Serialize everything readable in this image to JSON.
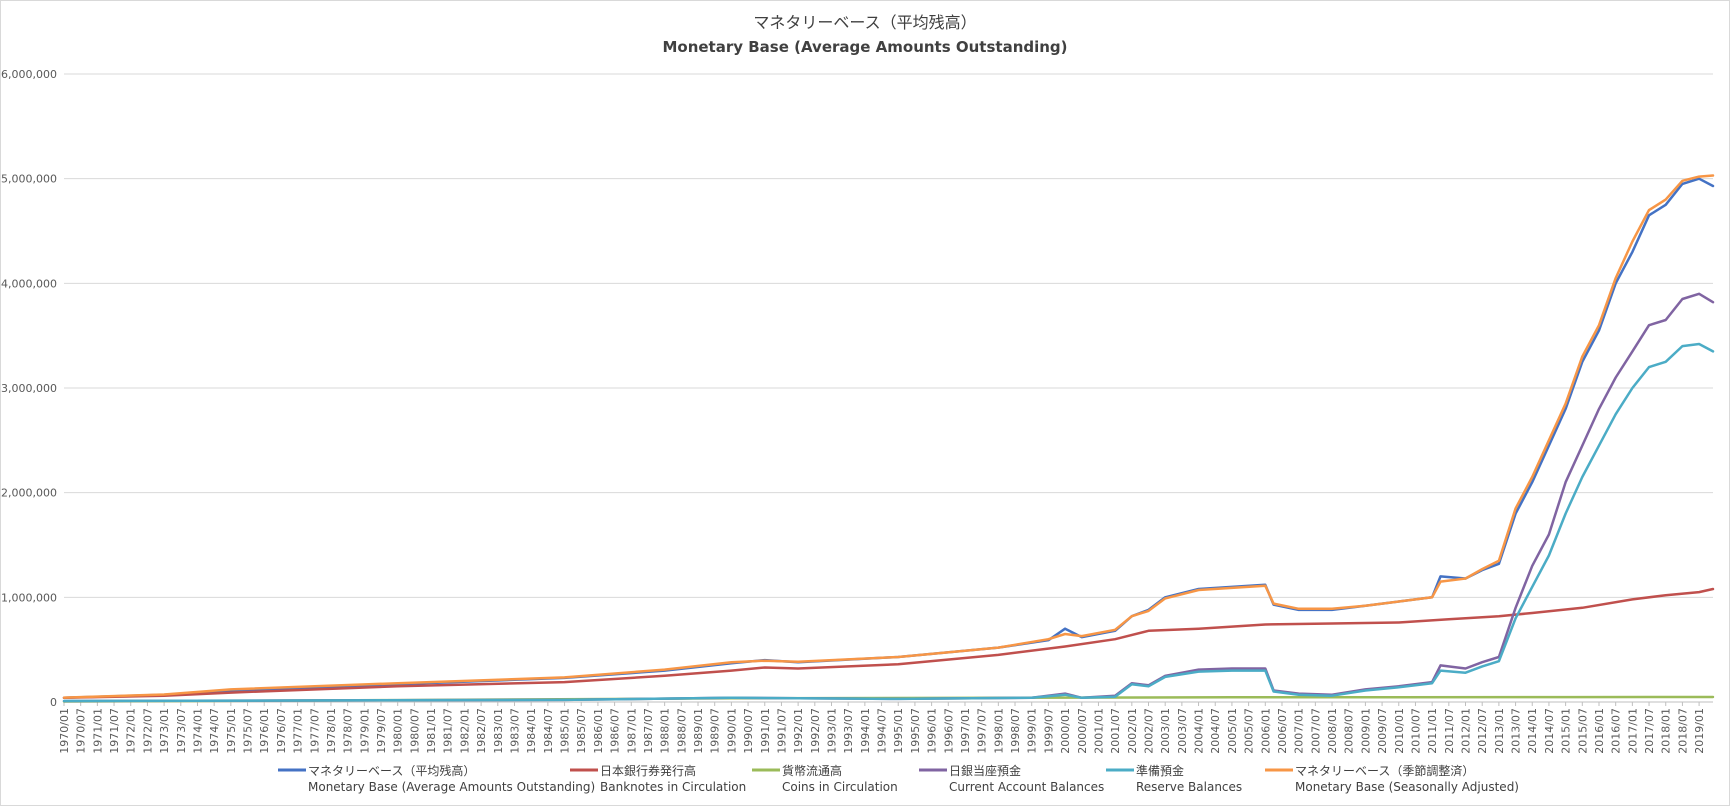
{
  "chart_data": {
    "type": "line",
    "title": "マネタリーベース（平均残高）",
    "subtitle": "Monetary Base (Average Amounts Outstanding)",
    "ylim": [
      0,
      6000000
    ],
    "yticks": [
      0,
      1000000,
      2000000,
      3000000,
      4000000,
      5000000,
      6000000
    ],
    "ytick_labels": [
      "0",
      "1,000,000",
      "2,000,000",
      "3,000,000",
      "4,000,000",
      "5,000,000",
      "6,000,000"
    ],
    "x_range": [
      "1970/01",
      "2019/06"
    ],
    "grid": true,
    "legend_position": "bottom",
    "series": [
      {
        "name": "マネタリーベース（平均残高）",
        "name_en": "Monetary Base (Average Amounts Outstanding)",
        "color": "#4472c4",
        "points": [
          [
            "1970/01",
            40000
          ],
          [
            "1973/01",
            70000
          ],
          [
            "1975/01",
            110000
          ],
          [
            "1980/01",
            170000
          ],
          [
            "1985/01",
            230000
          ],
          [
            "1988/01",
            300000
          ],
          [
            "1990/01",
            370000
          ],
          [
            "1991/01",
            400000
          ],
          [
            "1992/01",
            380000
          ],
          [
            "1995/01",
            430000
          ],
          [
            "1998/01",
            520000
          ],
          [
            "1999/07",
            590000
          ],
          [
            "2000/01",
            700000
          ],
          [
            "2000/07",
            620000
          ],
          [
            "2001/07",
            680000
          ],
          [
            "2002/01",
            820000
          ],
          [
            "2002/07",
            880000
          ],
          [
            "2003/01",
            1000000
          ],
          [
            "2004/01",
            1080000
          ],
          [
            "2005/01",
            1100000
          ],
          [
            "2006/01",
            1120000
          ],
          [
            "2006/04",
            930000
          ],
          [
            "2007/01",
            880000
          ],
          [
            "2008/01",
            880000
          ],
          [
            "2009/01",
            920000
          ],
          [
            "2010/01",
            960000
          ],
          [
            "2011/01",
            1000000
          ],
          [
            "2011/04",
            1200000
          ],
          [
            "2012/01",
            1180000
          ],
          [
            "2012/07",
            1260000
          ],
          [
            "2013/01",
            1320000
          ],
          [
            "2013/07",
            1800000
          ],
          [
            "2014/01",
            2100000
          ],
          [
            "2014/07",
            2450000
          ],
          [
            "2015/01",
            2800000
          ],
          [
            "2015/07",
            3250000
          ],
          [
            "2016/01",
            3550000
          ],
          [
            "2016/07",
            4000000
          ],
          [
            "2017/01",
            4300000
          ],
          [
            "2017/07",
            4650000
          ],
          [
            "2018/01",
            4750000
          ],
          [
            "2018/07",
            4950000
          ],
          [
            "2019/01",
            5000000
          ],
          [
            "2019/06",
            4930000
          ]
        ]
      },
      {
        "name": "日本銀行券発行高",
        "name_en": "Banknotes in Circulation",
        "color": "#c0504d",
        "points": [
          [
            "1970/01",
            40000
          ],
          [
            "1973/01",
            60000
          ],
          [
            "1975/01",
            90000
          ],
          [
            "1980/01",
            150000
          ],
          [
            "1985/01",
            190000
          ],
          [
            "1988/01",
            250000
          ],
          [
            "1990/01",
            300000
          ],
          [
            "1991/01",
            330000
          ],
          [
            "1992/01",
            320000
          ],
          [
            "1995/01",
            360000
          ],
          [
            "1998/01",
            450000
          ],
          [
            "2000/01",
            530000
          ],
          [
            "2001/07",
            600000
          ],
          [
            "2002/07",
            680000
          ],
          [
            "2004/01",
            700000
          ],
          [
            "2006/01",
            740000
          ],
          [
            "2008/01",
            750000
          ],
          [
            "2010/01",
            760000
          ],
          [
            "2011/07",
            790000
          ],
          [
            "2013/01",
            820000
          ],
          [
            "2014/01",
            850000
          ],
          [
            "2015/07",
            900000
          ],
          [
            "2017/01",
            980000
          ],
          [
            "2018/01",
            1020000
          ],
          [
            "2019/01",
            1050000
          ],
          [
            "2019/06",
            1080000
          ]
        ]
      },
      {
        "name": "貨幣流通高",
        "name_en": "Coins in Circulation",
        "color": "#9bbb59",
        "points": [
          [
            "1970/01",
            5000
          ],
          [
            "1980/01",
            18000
          ],
          [
            "1990/01",
            35000
          ],
          [
            "2000/01",
            42000
          ],
          [
            "2005/01",
            45000
          ],
          [
            "2010/01",
            46000
          ],
          [
            "2015/01",
            47000
          ],
          [
            "2019/06",
            48000
          ]
        ]
      },
      {
        "name": "日銀当座預金",
        "name_en": "Current Account Balances",
        "color": "#8064a2",
        "points": [
          [
            "1970/01",
            10000
          ],
          [
            "1985/01",
            20000
          ],
          [
            "1990/01",
            40000
          ],
          [
            "1995/01",
            30000
          ],
          [
            "1999/01",
            40000
          ],
          [
            "2000/01",
            80000
          ],
          [
            "2000/07",
            40000
          ],
          [
            "2001/07",
            60000
          ],
          [
            "2002/01",
            180000
          ],
          [
            "2002/07",
            160000
          ],
          [
            "2003/01",
            250000
          ],
          [
            "2004/01",
            310000
          ],
          [
            "2005/01",
            320000
          ],
          [
            "2006/01",
            320000
          ],
          [
            "2006/04",
            110000
          ],
          [
            "2007/01",
            80000
          ],
          [
            "2008/01",
            70000
          ],
          [
            "2009/01",
            120000
          ],
          [
            "2010/01",
            150000
          ],
          [
            "2011/01",
            190000
          ],
          [
            "2011/04",
            350000
          ],
          [
            "2012/01",
            320000
          ],
          [
            "2012/07",
            380000
          ],
          [
            "2013/01",
            430000
          ],
          [
            "2013/07",
            900000
          ],
          [
            "2014/01",
            1300000
          ],
          [
            "2014/07",
            1600000
          ],
          [
            "2015/01",
            2100000
          ],
          [
            "2015/07",
            2450000
          ],
          [
            "2016/01",
            2800000
          ],
          [
            "2016/07",
            3100000
          ],
          [
            "2017/01",
            3350000
          ],
          [
            "2017/07",
            3600000
          ],
          [
            "2018/01",
            3650000
          ],
          [
            "2018/07",
            3850000
          ],
          [
            "2019/01",
            3900000
          ],
          [
            "2019/06",
            3820000
          ]
        ]
      },
      {
        "name": "準備預金",
        "name_en": "Reserve Balances",
        "color": "#4bacc6",
        "points": [
          [
            "1970/01",
            10000
          ],
          [
            "1985/01",
            20000
          ],
          [
            "1990/01",
            40000
          ],
          [
            "1995/01",
            30000
          ],
          [
            "1999/01",
            40000
          ],
          [
            "2000/01",
            70000
          ],
          [
            "2000/07",
            40000
          ],
          [
            "2001/07",
            50000
          ],
          [
            "2002/01",
            170000
          ],
          [
            "2002/07",
            150000
          ],
          [
            "2003/01",
            240000
          ],
          [
            "2004/01",
            290000
          ],
          [
            "2005/01",
            300000
          ],
          [
            "2006/01",
            300000
          ],
          [
            "2006/04",
            100000
          ],
          [
            "2007/01",
            70000
          ],
          [
            "2008/01",
            60000
          ],
          [
            "2009/01",
            110000
          ],
          [
            "2010/01",
            140000
          ],
          [
            "2011/01",
            180000
          ],
          [
            "2011/04",
            300000
          ],
          [
            "2012/01",
            280000
          ],
          [
            "2012/07",
            340000
          ],
          [
            "2013/01",
            390000
          ],
          [
            "2013/07",
            800000
          ],
          [
            "2014/01",
            1100000
          ],
          [
            "2014/07",
            1400000
          ],
          [
            "2015/01",
            1800000
          ],
          [
            "2015/07",
            2150000
          ],
          [
            "2016/01",
            2450000
          ],
          [
            "2016/07",
            2750000
          ],
          [
            "2017/01",
            3000000
          ],
          [
            "2017/07",
            3200000
          ],
          [
            "2018/01",
            3250000
          ],
          [
            "2018/07",
            3400000
          ],
          [
            "2019/01",
            3420000
          ],
          [
            "2019/06",
            3350000
          ]
        ]
      },
      {
        "name": "マネタリーベース（季節調整済）",
        "name_en": "Monetary Base  (Seasonally Adjusted)",
        "color": "#f79646",
        "points": [
          [
            "1970/01",
            42000
          ],
          [
            "1973/01",
            72000
          ],
          [
            "1975/01",
            120000
          ],
          [
            "1980/01",
            180000
          ],
          [
            "1985/01",
            235000
          ],
          [
            "1988/01",
            310000
          ],
          [
            "1990/01",
            380000
          ],
          [
            "1991/01",
            395000
          ],
          [
            "1992/01",
            385000
          ],
          [
            "1995/01",
            430000
          ],
          [
            "1998/01",
            520000
          ],
          [
            "1999/07",
            600000
          ],
          [
            "2000/01",
            650000
          ],
          [
            "2000/07",
            630000
          ],
          [
            "2001/07",
            690000
          ],
          [
            "2002/01",
            820000
          ],
          [
            "2002/07",
            870000
          ],
          [
            "2003/01",
            990000
          ],
          [
            "2004/01",
            1070000
          ],
          [
            "2005/01",
            1090000
          ],
          [
            "2006/01",
            1110000
          ],
          [
            "2006/04",
            940000
          ],
          [
            "2007/01",
            890000
          ],
          [
            "2008/01",
            890000
          ],
          [
            "2009/01",
            920000
          ],
          [
            "2010/01",
            960000
          ],
          [
            "2011/01",
            1000000
          ],
          [
            "2011/04",
            1150000
          ],
          [
            "2012/01",
            1180000
          ],
          [
            "2012/07",
            1270000
          ],
          [
            "2013/01",
            1350000
          ],
          [
            "2013/07",
            1850000
          ],
          [
            "2014/01",
            2150000
          ],
          [
            "2014/07",
            2500000
          ],
          [
            "2015/01",
            2850000
          ],
          [
            "2015/07",
            3300000
          ],
          [
            "2016/01",
            3600000
          ],
          [
            "2016/07",
            4050000
          ],
          [
            "2017/01",
            4400000
          ],
          [
            "2017/07",
            4700000
          ],
          [
            "2018/01",
            4800000
          ],
          [
            "2018/07",
            4980000
          ],
          [
            "2019/01",
            5020000
          ],
          [
            "2019/06",
            5030000
          ]
        ]
      }
    ]
  }
}
